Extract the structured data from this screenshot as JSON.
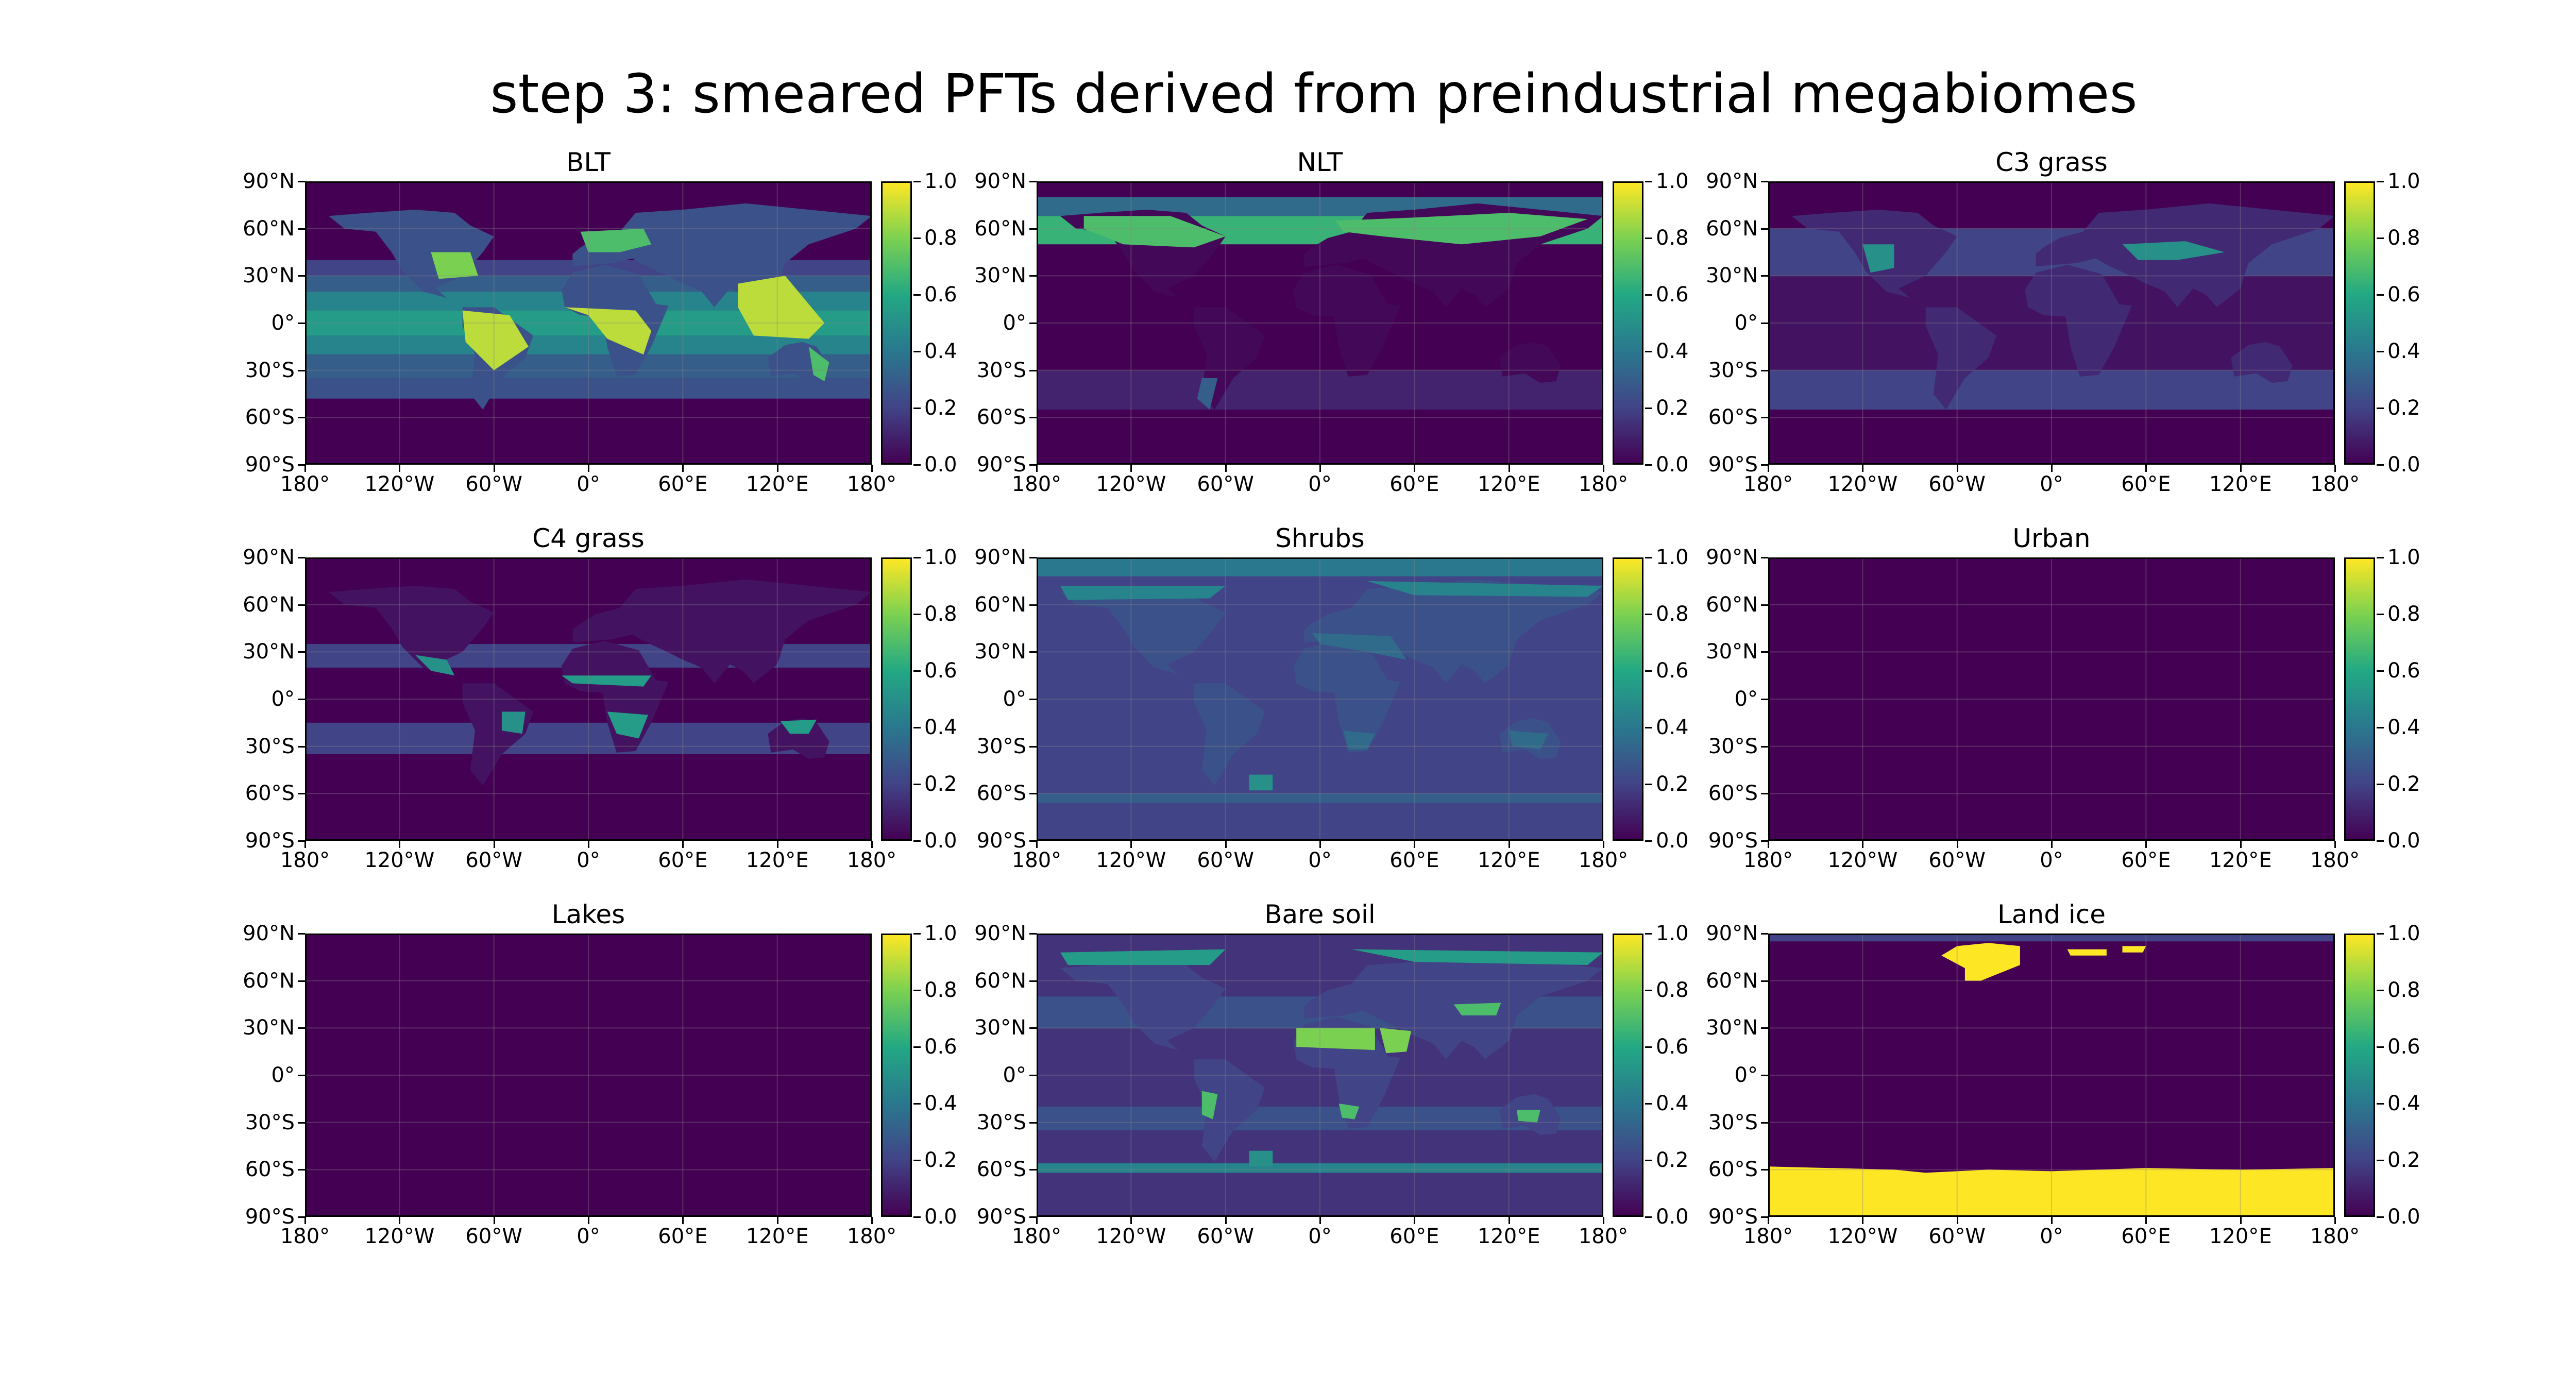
{
  "figure_title": "step 3: smeared PFTs derived from preindustrial megabiomes",
  "axes": {
    "lat_ticks": [
      "90°N",
      "60°N",
      "30°N",
      "0°",
      "30°S",
      "60°S",
      "90°S"
    ],
    "lon_ticks": [
      "180°",
      "120°W",
      "60°W",
      "0°",
      "60°E",
      "120°E",
      "180°"
    ],
    "colorbar_ticks": [
      "0.0",
      "0.2",
      "0.4",
      "0.6",
      "0.8",
      "1.0"
    ],
    "colorbar_range": [
      0.0,
      1.0
    ],
    "colormap": "viridis",
    "colormap_stops": [
      "#440154",
      "#414487",
      "#2a788e",
      "#22a884",
      "#7ad151",
      "#fde725"
    ],
    "ocean_color": "#440154",
    "grid": true
  },
  "panels": [
    {
      "title": "BLT"
    },
    {
      "title": "NLT"
    },
    {
      "title": "C3 grass"
    },
    {
      "title": "C4 grass"
    },
    {
      "title": "Shrubs"
    },
    {
      "title": "Urban"
    },
    {
      "title": "Lakes"
    },
    {
      "title": "Bare soil"
    },
    {
      "title": "Land ice"
    }
  ],
  "chart_data": [
    {
      "type": "heatmap",
      "title": "BLT",
      "value_range": [
        0,
        1
      ],
      "features": [
        {
          "region": "Amazon / tropical South America",
          "value": 0.9
        },
        {
          "region": "Central Africa",
          "value": 0.9
        },
        {
          "region": "Southeast Asia / Indonesia",
          "value": 0.9
        },
        {
          "region": "Eastern North America",
          "value": 0.8
        },
        {
          "region": "Europe",
          "value": 0.7
        },
        {
          "region": "Eastern Australia",
          "value": 0.7
        },
        {
          "region": "Tropical ocean band (smeared)",
          "value": 0.55
        },
        {
          "region": "Midlatitude ocean band (smeared)",
          "value": 0.25
        },
        {
          "region": "Polar regions",
          "value": 0.0
        }
      ]
    },
    {
      "type": "heatmap",
      "title": "NLT",
      "value_range": [
        0,
        1
      ],
      "features": [
        {
          "region": "Boreal North America",
          "value": 0.7
        },
        {
          "region": "Boreal Eurasia / Siberia",
          "value": 0.7
        },
        {
          "region": "Northern high-latitude band (smeared)",
          "value": 0.65
        },
        {
          "region": "Tropics",
          "value": 0.0
        },
        {
          "region": "Southern midlatitude band",
          "value": 0.1
        }
      ]
    },
    {
      "type": "heatmap",
      "title": "C3 grass",
      "value_range": [
        0,
        1
      ],
      "features": [
        {
          "region": "Western North America",
          "value": 0.5
        },
        {
          "region": "Central Asian steppe",
          "value": 0.5
        },
        {
          "region": "Northern midlatitude band (smeared)",
          "value": 0.2
        },
        {
          "region": "Southern midlatitude band (smeared)",
          "value": 0.2
        },
        {
          "region": "Tropics",
          "value": 0.05
        }
      ]
    },
    {
      "type": "heatmap",
      "title": "C4 grass",
      "value_range": [
        0,
        1
      ],
      "features": [
        {
          "region": "Sahel",
          "value": 0.55
        },
        {
          "region": "Southern Africa savanna",
          "value": 0.55
        },
        {
          "region": "Northern Australia",
          "value": 0.55
        },
        {
          "region": "Mexico / Central America",
          "value": 0.5
        },
        {
          "region": "Cerrado (Brazil)",
          "value": 0.5
        },
        {
          "region": "Subtropical band (smeared)",
          "value": 0.2
        }
      ]
    },
    {
      "type": "heatmap",
      "title": "Shrubs",
      "value_range": [
        0,
        1
      ],
      "features": [
        {
          "region": "Arctic tundra",
          "value": 0.45
        },
        {
          "region": "Mediterranean / Middle East",
          "value": 0.35
        },
        {
          "region": "Interior Australia",
          "value": 0.35
        },
        {
          "region": "Southern Africa",
          "value": 0.35
        },
        {
          "region": "Sub-Antarctic block",
          "value": 0.5
        },
        {
          "region": "Global smeared background",
          "value": 0.2
        }
      ]
    },
    {
      "type": "heatmap",
      "title": "Urban",
      "value_range": [
        0,
        1
      ],
      "features": [
        {
          "region": "Global",
          "value": 0.0
        }
      ]
    },
    {
      "type": "heatmap",
      "title": "Lakes",
      "value_range": [
        0,
        1
      ],
      "features": [
        {
          "region": "Global",
          "value": 0.0
        }
      ]
    },
    {
      "type": "heatmap",
      "title": "Bare soil",
      "value_range": [
        0,
        1
      ],
      "features": [
        {
          "region": "Sahara",
          "value": 0.8
        },
        {
          "region": "Arabian Peninsula",
          "value": 0.8
        },
        {
          "region": "Gobi / Central Asia",
          "value": 0.7
        },
        {
          "region": "Atacama / Southwest South America",
          "value": 0.7
        },
        {
          "region": "Namib / Kalahari",
          "value": 0.7
        },
        {
          "region": "Central Australia",
          "value": 0.7
        },
        {
          "region": "High Arctic",
          "value": 0.55
        },
        {
          "region": "Sub-Antarctic block",
          "value": 0.5
        },
        {
          "region": "Global smeared background",
          "value": 0.25
        }
      ]
    },
    {
      "type": "heatmap",
      "title": "Land ice",
      "value_range": [
        0,
        1
      ],
      "features": [
        {
          "region": "Greenland",
          "value": 1.0
        },
        {
          "region": "Svalbard / Franz Josef Land",
          "value": 1.0
        },
        {
          "region": "Antarctica (south of ~60°S)",
          "value": 1.0
        },
        {
          "region": "Elsewhere",
          "value": 0.0
        }
      ]
    }
  ]
}
